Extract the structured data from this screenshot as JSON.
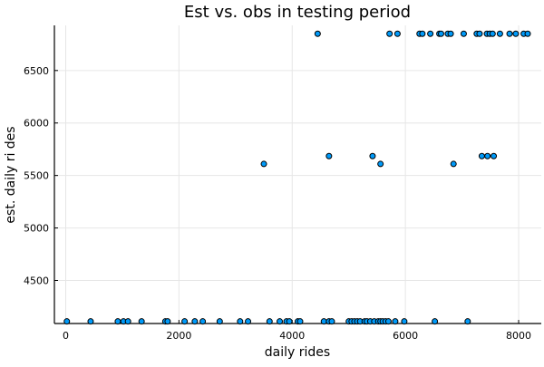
{
  "chart_data": {
    "type": "scatter",
    "title": "Est vs. obs in testing period",
    "xlabel": "daily rides",
    "ylabel": "est. daily ri des",
    "xlim": [
      -200,
      8400
    ],
    "ylim": [
      4090,
      6930
    ],
    "xticks": [
      0,
      2000,
      4000,
      6000,
      8000
    ],
    "xtick_labels": [
      "0",
      "2000",
      "4000",
      "6000",
      "8000"
    ],
    "yticks": [
      4500,
      5000,
      5500,
      6000,
      6500
    ],
    "ytick_labels": [
      "4500",
      "5000",
      "5500",
      "6000",
      "6500"
    ],
    "grid": true,
    "legend": "none",
    "marker_color": "#009af9",
    "points": [
      {
        "x": 20,
        "y": 4110
      },
      {
        "x": 440,
        "y": 4110
      },
      {
        "x": 920,
        "y": 4110
      },
      {
        "x": 1020,
        "y": 4110
      },
      {
        "x": 1100,
        "y": 4110
      },
      {
        "x": 1340,
        "y": 4110
      },
      {
        "x": 1760,
        "y": 4110
      },
      {
        "x": 1800,
        "y": 4110
      },
      {
        "x": 2100,
        "y": 4110
      },
      {
        "x": 2280,
        "y": 4110
      },
      {
        "x": 2420,
        "y": 4110
      },
      {
        "x": 2720,
        "y": 4110
      },
      {
        "x": 3080,
        "y": 4110
      },
      {
        "x": 3220,
        "y": 4110
      },
      {
        "x": 3600,
        "y": 4110
      },
      {
        "x": 3780,
        "y": 4110
      },
      {
        "x": 3900,
        "y": 4110
      },
      {
        "x": 3950,
        "y": 4110
      },
      {
        "x": 4100,
        "y": 4110
      },
      {
        "x": 4140,
        "y": 4110
      },
      {
        "x": 4560,
        "y": 4110
      },
      {
        "x": 4650,
        "y": 4110
      },
      {
        "x": 4700,
        "y": 4110
      },
      {
        "x": 5000,
        "y": 4110
      },
      {
        "x": 5050,
        "y": 4110
      },
      {
        "x": 5100,
        "y": 4110
      },
      {
        "x": 5150,
        "y": 4110
      },
      {
        "x": 5200,
        "y": 4110
      },
      {
        "x": 5280,
        "y": 4110
      },
      {
        "x": 5320,
        "y": 4110
      },
      {
        "x": 5380,
        "y": 4110
      },
      {
        "x": 5450,
        "y": 4110
      },
      {
        "x": 5520,
        "y": 4110
      },
      {
        "x": 5560,
        "y": 4110
      },
      {
        "x": 5600,
        "y": 4110
      },
      {
        "x": 5650,
        "y": 4110
      },
      {
        "x": 5700,
        "y": 4110
      },
      {
        "x": 5820,
        "y": 4110
      },
      {
        "x": 5980,
        "y": 4110
      },
      {
        "x": 6520,
        "y": 4110
      },
      {
        "x": 7100,
        "y": 4110
      },
      {
        "x": 3500,
        "y": 5610
      },
      {
        "x": 4650,
        "y": 5685
      },
      {
        "x": 5420,
        "y": 5685
      },
      {
        "x": 5560,
        "y": 5610
      },
      {
        "x": 6850,
        "y": 5610
      },
      {
        "x": 7350,
        "y": 5685
      },
      {
        "x": 7450,
        "y": 5685
      },
      {
        "x": 7560,
        "y": 5685
      },
      {
        "x": 4450,
        "y": 6850
      },
      {
        "x": 5720,
        "y": 6850
      },
      {
        "x": 5860,
        "y": 6850
      },
      {
        "x": 6250,
        "y": 6850
      },
      {
        "x": 6300,
        "y": 6850
      },
      {
        "x": 6440,
        "y": 6850
      },
      {
        "x": 6600,
        "y": 6850
      },
      {
        "x": 6630,
        "y": 6850
      },
      {
        "x": 6750,
        "y": 6850
      },
      {
        "x": 6800,
        "y": 6850
      },
      {
        "x": 7030,
        "y": 6850
      },
      {
        "x": 7260,
        "y": 6850
      },
      {
        "x": 7310,
        "y": 6850
      },
      {
        "x": 7440,
        "y": 6850
      },
      {
        "x": 7490,
        "y": 6850
      },
      {
        "x": 7540,
        "y": 6850
      },
      {
        "x": 7670,
        "y": 6850
      },
      {
        "x": 7840,
        "y": 6850
      },
      {
        "x": 7950,
        "y": 6850
      },
      {
        "x": 8090,
        "y": 6850
      },
      {
        "x": 8160,
        "y": 6850
      }
    ]
  }
}
